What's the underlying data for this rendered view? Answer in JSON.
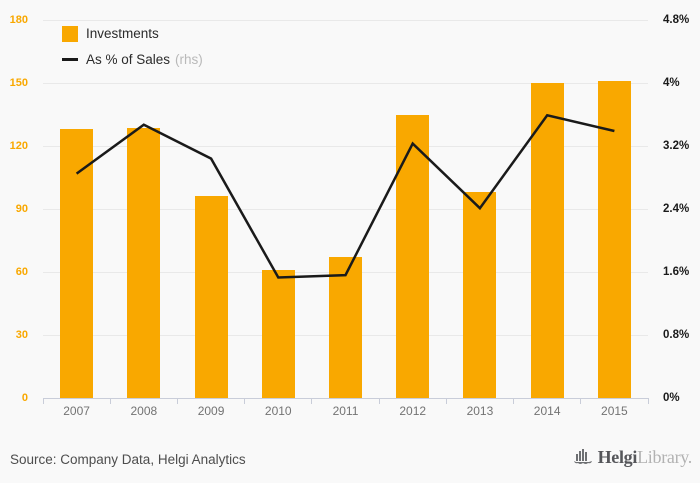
{
  "legend": {
    "items": [
      {
        "swatch": "bar",
        "label": "Investments"
      },
      {
        "swatch": "line",
        "label": "As % of Sales",
        "suffix": "(rhs)"
      }
    ]
  },
  "chart_data": {
    "type": "bar",
    "categories": [
      "2007",
      "2008",
      "2009",
      "2010",
      "2011",
      "2012",
      "2013",
      "2014",
      "2015"
    ],
    "series": [
      {
        "name": "Investments",
        "type": "bar",
        "axis": "left",
        "color": "#f9a800",
        "values": [
          128,
          128.5,
          96,
          61,
          67,
          135,
          98,
          150,
          151
        ]
      },
      {
        "name": "As % of Sales (rhs)",
        "type": "line",
        "axis": "right",
        "color": "#1a1a1a",
        "values": [
          2.85,
          3.47,
          3.04,
          1.53,
          1.56,
          3.23,
          2.41,
          3.59,
          3.39
        ]
      }
    ],
    "left_axis": {
      "min": 0,
      "max": 180,
      "ticks": [
        "180",
        "150",
        "120",
        "90",
        "60",
        "30",
        "0"
      ],
      "label_color": "#f9a800"
    },
    "right_axis": {
      "min": 0,
      "max": 4.8,
      "ticks": [
        "4.8%",
        "4%",
        "3.2%",
        "2.4%",
        "1.6%",
        "0.8%",
        "0%"
      ],
      "label_color": "#1a1a1a"
    },
    "grid": true,
    "legend_position": "top-left",
    "background": "#f9f9f9"
  },
  "footer": {
    "source": "Source: Company Data, Helgi Analytics",
    "logo_bold": "Helgi",
    "logo_light": "Library."
  }
}
